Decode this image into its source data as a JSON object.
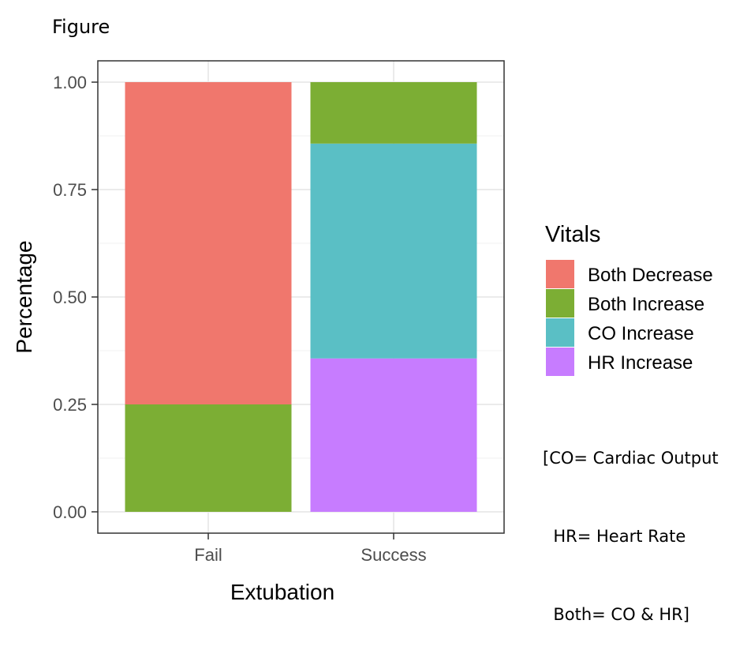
{
  "figure_label": "Figure",
  "note_lines": [
    "[CO= Cardiac Output",
    "  HR= Heart Rate",
    "  Both= CO & HR]"
  ],
  "chart_data": {
    "type": "bar",
    "stacked": true,
    "categories": [
      "Fail",
      "Success"
    ],
    "xlabel": "Extubation",
    "ylabel": "Percentage",
    "ylim": [
      0,
      1
    ],
    "yticks": [
      "0.00",
      "0.25",
      "0.50",
      "0.75",
      "1.00"
    ],
    "grid": true,
    "legend_title": "Vitals",
    "legend_position": "right",
    "series": [
      {
        "name": "HR Increase",
        "color": "#C77CFF",
        "values": [
          0,
          0.357
        ]
      },
      {
        "name": "CO Increase",
        "color": "#5ABFC5",
        "values": [
          0,
          0.5
        ]
      },
      {
        "name": "Both Increase",
        "color": "#7CAE34",
        "values": [
          0.25,
          0.143
        ]
      },
      {
        "name": "Both Decrease",
        "color": "#F0776D",
        "values": [
          0.75,
          0
        ]
      }
    ],
    "legend_order": [
      "Both Decrease",
      "Both Increase",
      "CO Increase",
      "HR Increase"
    ]
  }
}
